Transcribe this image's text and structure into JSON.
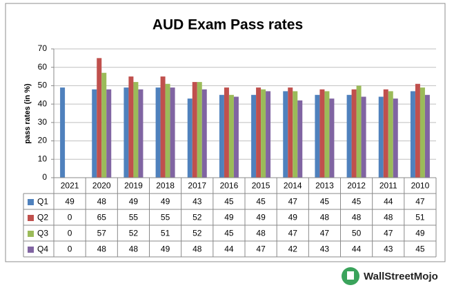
{
  "chart_data": {
    "type": "bar",
    "title": "AUD Exam Pass rates",
    "y_label": "pass rates (in %)",
    "categories": [
      "2021",
      "2020",
      "2019",
      "2018",
      "2017",
      "2016",
      "2015",
      "2014",
      "2013",
      "2012",
      "2011",
      "2010"
    ],
    "series": [
      {
        "name": "Q1",
        "color": "#4f81bd",
        "values": [
          49,
          48,
          49,
          49,
          43,
          45,
          45,
          47,
          45,
          45,
          44,
          47
        ]
      },
      {
        "name": "Q2",
        "color": "#c0504d",
        "values": [
          0,
          65,
          55,
          55,
          52,
          49,
          49,
          49,
          48,
          48,
          48,
          51
        ]
      },
      {
        "name": "Q3",
        "color": "#9bbb59",
        "values": [
          0,
          57,
          52,
          51,
          52,
          45,
          48,
          47,
          47,
          50,
          47,
          49
        ]
      },
      {
        "name": "Q4",
        "color": "#8064a2",
        "values": [
          0,
          48,
          48,
          49,
          48,
          44,
          47,
          42,
          43,
          44,
          43,
          45
        ]
      }
    ],
    "ylim": [
      0,
      70
    ],
    "yticks": [
      0,
      10,
      20,
      30,
      40,
      50,
      60,
      70
    ],
    "grid": true,
    "data_table": true
  },
  "watermark": "WallStreetMojo"
}
